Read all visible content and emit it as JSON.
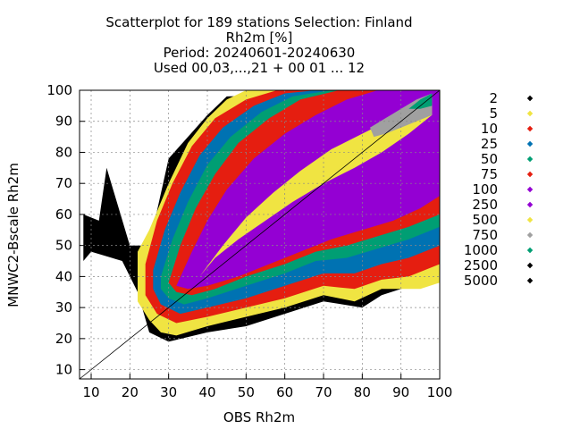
{
  "chart_data": {
    "type": "scatter",
    "title_lines": [
      "Scatterplot for  189 stations Selection: Finland",
      "Rh2m [%]",
      "Period: 20240601-20240630",
      "Used 00,03,...,21 + 00 01 ... 12"
    ],
    "xlabel": "OBS Rh2m",
    "ylabel": "MNWC2-Bscale Rh2m",
    "xlim": [
      7,
      100
    ],
    "ylim": [
      7,
      100
    ],
    "xticks": [
      10,
      20,
      30,
      40,
      50,
      60,
      70,
      80,
      90,
      100
    ],
    "yticks": [
      10,
      20,
      30,
      40,
      50,
      60,
      70,
      80,
      90,
      100
    ],
    "grid": true,
    "legend_position": "right",
    "diagonal_line": true,
    "legend": [
      {
        "label": "2",
        "color": "#000000"
      },
      {
        "label": "5",
        "color": "#f0e442"
      },
      {
        "label": "10",
        "color": "#e51e10"
      },
      {
        "label": "25",
        "color": "#0072b2"
      },
      {
        "label": "50",
        "color": "#009e73"
      },
      {
        "label": "75",
        "color": "#e51e10"
      },
      {
        "label": "100",
        "color": "#9400d3"
      },
      {
        "label": "250",
        "color": "#9400d3"
      },
      {
        "label": "500",
        "color": "#f0e442"
      },
      {
        "label": "750",
        "color": "#a0a0a0"
      },
      {
        "label": "1000",
        "color": "#009e73"
      },
      {
        "label": "2500",
        "color": "#000000"
      },
      {
        "label": "5000",
        "color": "#000000"
      }
    ],
    "density_layers": [
      {
        "color": "#000000",
        "polygon": [
          [
            8,
            60
          ],
          [
            12,
            58
          ],
          [
            14,
            75
          ],
          [
            20,
            50
          ],
          [
            25,
            50
          ],
          [
            30,
            78
          ],
          [
            35,
            85
          ],
          [
            40,
            92
          ],
          [
            45,
            98
          ],
          [
            100,
            100
          ],
          [
            100,
            38
          ],
          [
            90,
            36
          ],
          [
            85,
            34
          ],
          [
            80,
            30
          ],
          [
            70,
            32
          ],
          [
            60,
            28
          ],
          [
            50,
            24
          ],
          [
            40,
            22
          ],
          [
            30,
            19
          ],
          [
            25,
            22
          ],
          [
            22,
            35
          ],
          [
            18,
            45
          ],
          [
            10,
            48
          ],
          [
            8,
            45
          ]
        ]
      },
      {
        "color": "#f0e442",
        "polygon": [
          [
            22,
            48
          ],
          [
            25,
            55
          ],
          [
            30,
            70
          ],
          [
            35,
            83
          ],
          [
            40,
            91
          ],
          [
            45,
            97
          ],
          [
            50,
            100
          ],
          [
            100,
            100
          ],
          [
            100,
            38
          ],
          [
            95,
            36
          ],
          [
            85,
            36
          ],
          [
            78,
            32
          ],
          [
            70,
            34
          ],
          [
            60,
            30
          ],
          [
            50,
            27
          ],
          [
            40,
            24
          ],
          [
            32,
            21
          ],
          [
            28,
            22
          ],
          [
            25,
            26
          ],
          [
            22,
            32
          ]
        ]
      },
      {
        "color": "#e51e10",
        "polygon": [
          [
            24,
            44
          ],
          [
            27,
            58
          ],
          [
            31,
            70
          ],
          [
            36,
            82
          ],
          [
            42,
            91
          ],
          [
            50,
            97
          ],
          [
            58,
            100
          ],
          [
            100,
            100
          ],
          [
            100,
            44
          ],
          [
            92,
            40
          ],
          [
            85,
            39
          ],
          [
            78,
            36
          ],
          [
            70,
            37
          ],
          [
            60,
            33
          ],
          [
            50,
            30
          ],
          [
            40,
            27
          ],
          [
            32,
            25
          ],
          [
            27,
            28
          ],
          [
            24,
            34
          ]
        ]
      },
      {
        "color": "#0072b2",
        "polygon": [
          [
            26,
            42
          ],
          [
            29,
            55
          ],
          [
            33,
            67
          ],
          [
            38,
            79
          ],
          [
            44,
            88
          ],
          [
            52,
            95
          ],
          [
            60,
            99
          ],
          [
            68,
            100
          ],
          [
            100,
            100
          ],
          [
            100,
            50
          ],
          [
            92,
            46
          ],
          [
            85,
            44
          ],
          [
            78,
            41
          ],
          [
            70,
            41
          ],
          [
            60,
            37
          ],
          [
            50,
            33
          ],
          [
            40,
            30
          ],
          [
            33,
            28
          ],
          [
            28,
            31
          ],
          [
            26,
            36
          ]
        ]
      },
      {
        "color": "#009e73",
        "polygon": [
          [
            28,
            40
          ],
          [
            31,
            52
          ],
          [
            35,
            64
          ],
          [
            40,
            76
          ],
          [
            46,
            85
          ],
          [
            54,
            93
          ],
          [
            62,
            98
          ],
          [
            72,
            100
          ],
          [
            100,
            100
          ],
          [
            100,
            56
          ],
          [
            92,
            52
          ],
          [
            84,
            49
          ],
          [
            76,
            46
          ],
          [
            68,
            45
          ],
          [
            60,
            41
          ],
          [
            50,
            37
          ],
          [
            40,
            33
          ],
          [
            34,
            31
          ],
          [
            30,
            33
          ],
          [
            28,
            36
          ]
        ]
      },
      {
        "color": "#e51e10",
        "polygon": [
          [
            30,
            38
          ],
          [
            33,
            50
          ],
          [
            37,
            62
          ],
          [
            42,
            73
          ],
          [
            48,
            83
          ],
          [
            56,
            91
          ],
          [
            64,
            97
          ],
          [
            74,
            100
          ],
          [
            100,
            100
          ],
          [
            100,
            60
          ],
          [
            92,
            56
          ],
          [
            84,
            53
          ],
          [
            76,
            50
          ],
          [
            68,
            48
          ],
          [
            60,
            44
          ],
          [
            50,
            40
          ],
          [
            42,
            36
          ],
          [
            36,
            34
          ],
          [
            32,
            35
          ]
        ]
      },
      {
        "color": "#9400d3",
        "polygon": [
          [
            32,
            37
          ],
          [
            36,
            48
          ],
          [
            40,
            58
          ],
          [
            45,
            68
          ],
          [
            52,
            78
          ],
          [
            60,
            86
          ],
          [
            68,
            92
          ],
          [
            76,
            97
          ],
          [
            84,
            100
          ],
          [
            100,
            100
          ],
          [
            100,
            66
          ],
          [
            95,
            62
          ],
          [
            88,
            58
          ],
          [
            80,
            55
          ],
          [
            72,
            52
          ],
          [
            64,
            48
          ],
          [
            56,
            44
          ],
          [
            48,
            40
          ],
          [
            40,
            37
          ],
          [
            35,
            36
          ]
        ]
      },
      {
        "color": "#f0e442",
        "polygon": [
          [
            38,
            40
          ],
          [
            44,
            50
          ],
          [
            50,
            59
          ],
          [
            57,
            67
          ],
          [
            64,
            74
          ],
          [
            72,
            81
          ],
          [
            80,
            86
          ],
          [
            88,
            91
          ],
          [
            94,
            95
          ],
          [
            98,
            98
          ],
          [
            98,
            92
          ],
          [
            92,
            86
          ],
          [
            85,
            80
          ],
          [
            78,
            75
          ],
          [
            70,
            70
          ],
          [
            62,
            64
          ],
          [
            55,
            58
          ],
          [
            48,
            52
          ],
          [
            42,
            46
          ]
        ]
      },
      {
        "color": "#a0a0a0",
        "polygon": [
          [
            82,
            88
          ],
          [
            86,
            91
          ],
          [
            90,
            94
          ],
          [
            94,
            97
          ],
          [
            98,
            99
          ],
          [
            98,
            92
          ],
          [
            94,
            90
          ],
          [
            90,
            88
          ],
          [
            86,
            86
          ],
          [
            83,
            85
          ]
        ]
      },
      {
        "color": "#009e73",
        "polygon": [
          [
            92,
            94
          ],
          [
            95,
            97
          ],
          [
            98,
            99
          ],
          [
            98,
            95
          ],
          [
            95,
            94
          ]
        ]
      }
    ]
  }
}
